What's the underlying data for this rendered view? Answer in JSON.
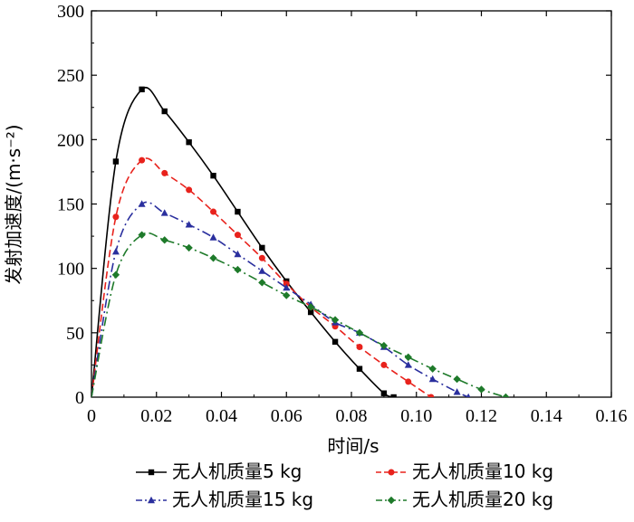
{
  "chart_data": {
    "type": "line",
    "xlabel": "时间/s",
    "ylabel": "发射加速度/(m·s⁻²)",
    "xlim": [
      0,
      0.16
    ],
    "ylim": [
      0,
      300
    ],
    "x_ticks": [
      "0",
      "0.02",
      "0.04",
      "0.06",
      "0.08",
      "0.10",
      "0.12",
      "0.14",
      "0.16"
    ],
    "y_ticks": [
      "50",
      "100",
      "150",
      "200",
      "250",
      "300"
    ],
    "legend_position": "bottom",
    "series": [
      {
        "name": "无人机质量5 kg",
        "color": "#000000",
        "dash": "solid",
        "marker": "square",
        "x": [
          0,
          0.0075,
          0.0155,
          0.0225,
          0.03,
          0.0375,
          0.045,
          0.0525,
          0.06,
          0.0675,
          0.075,
          0.0825,
          0.09,
          0.093
        ],
        "y": [
          0,
          183,
          239,
          222,
          198,
          172,
          144,
          116,
          90,
          66,
          43,
          22,
          3,
          0
        ]
      },
      {
        "name": "无人机质量10 kg",
        "color": "#e8221c",
        "dash": "dash",
        "marker": "circle",
        "x": [
          0,
          0.0075,
          0.0155,
          0.0225,
          0.03,
          0.0375,
          0.045,
          0.0525,
          0.06,
          0.0675,
          0.075,
          0.0825,
          0.09,
          0.0975,
          0.1045
        ],
        "y": [
          0,
          140,
          184,
          174,
          161,
          144,
          126,
          108,
          88,
          70,
          55,
          39,
          25,
          12,
          0
        ]
      },
      {
        "name": "无人机质量15 kg",
        "color": "#2a2f9e",
        "dash": "dashdot",
        "marker": "triangle",
        "x": [
          0,
          0.0075,
          0.0155,
          0.0225,
          0.03,
          0.0375,
          0.045,
          0.0525,
          0.06,
          0.0675,
          0.075,
          0.0825,
          0.09,
          0.0975,
          0.105,
          0.1125,
          0.116
        ],
        "y": [
          0,
          113,
          150,
          143,
          134,
          124,
          111,
          98,
          85,
          72,
          58,
          50,
          39,
          25,
          14,
          4,
          0
        ]
      },
      {
        "name": "无人机质量20 kg",
        "color": "#1e7a2a",
        "dash": "dashdot",
        "marker": "diamond",
        "x": [
          0,
          0.0075,
          0.0155,
          0.0225,
          0.03,
          0.0375,
          0.045,
          0.0525,
          0.06,
          0.0675,
          0.075,
          0.0825,
          0.09,
          0.0975,
          0.105,
          0.1125,
          0.12,
          0.1275
        ],
        "y": [
          0,
          95,
          126,
          122,
          116,
          108,
          99,
          89,
          79,
          70,
          60,
          50,
          40,
          31,
          22,
          14,
          6,
          0
        ]
      }
    ]
  }
}
